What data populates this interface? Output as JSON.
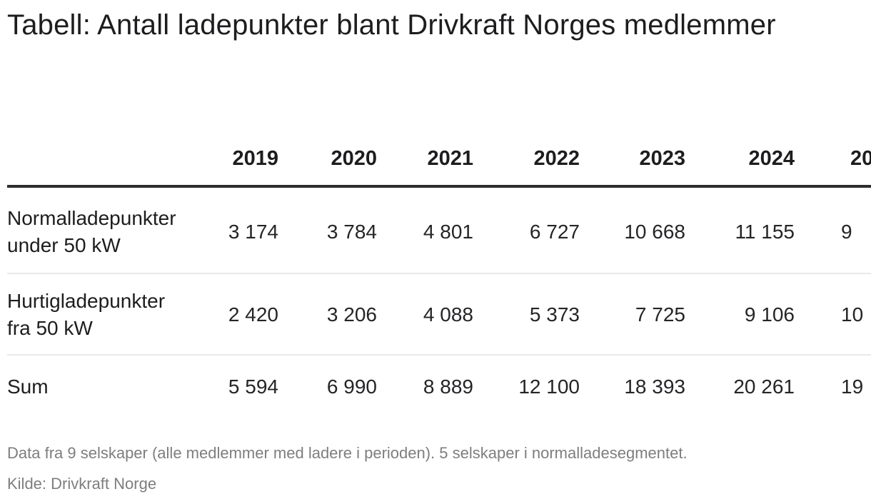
{
  "title": "Tabell: Antall ladepunkter blant Drivkraft Norges medlemmer",
  "chart_data": {
    "type": "table",
    "title": "Tabell: Antall ladepunkter blant Drivkraft Norges medlemmer",
    "year_columns": [
      "2019",
      "2020",
      "2021",
      "2022",
      "2023",
      "2024"
    ],
    "clipped_year_fragment": "20",
    "rows": [
      {
        "label_line1": "Normalladepunkter",
        "label_line2": "under 50 kW",
        "values": [
          "3 174",
          "3 784",
          "4 801",
          "6 727",
          "10 668",
          "11 155"
        ],
        "clipped_value": "9"
      },
      {
        "label_line1": "Hurtigladepunkter",
        "label_line2": "fra 50 kW",
        "values": [
          "2 420",
          "3 206",
          "4 088",
          "5 373",
          "7 725",
          "9 106"
        ],
        "clipped_value": "10"
      },
      {
        "label_line1": "Sum",
        "label_line2": "",
        "values": [
          "5 594",
          "6 990",
          "8 889",
          "12 100",
          "18 393",
          "20 261"
        ],
        "clipped_value": "19"
      }
    ],
    "layout_hints": {
      "number_alignment": "right",
      "thousand_separator": "space",
      "header_rule": "thick-dark",
      "row_rules": "thin-light",
      "rightmost_column_clipped": true
    }
  },
  "footnotes": {
    "line1": "Data fra 9 selskaper (alle medlemmer med ladere i perioden). 5 selskaper i normalladesegmentet.",
    "line2": "Kilde: Drivkraft Norge"
  },
  "colors": {
    "background": "#ffffff",
    "text_primary": "#1d1d1f",
    "text_numbers": "#252528",
    "text_muted": "#7e7e7e",
    "rule_heavy": "#2c2c2c",
    "rule_light": "#e9e9e9"
  }
}
